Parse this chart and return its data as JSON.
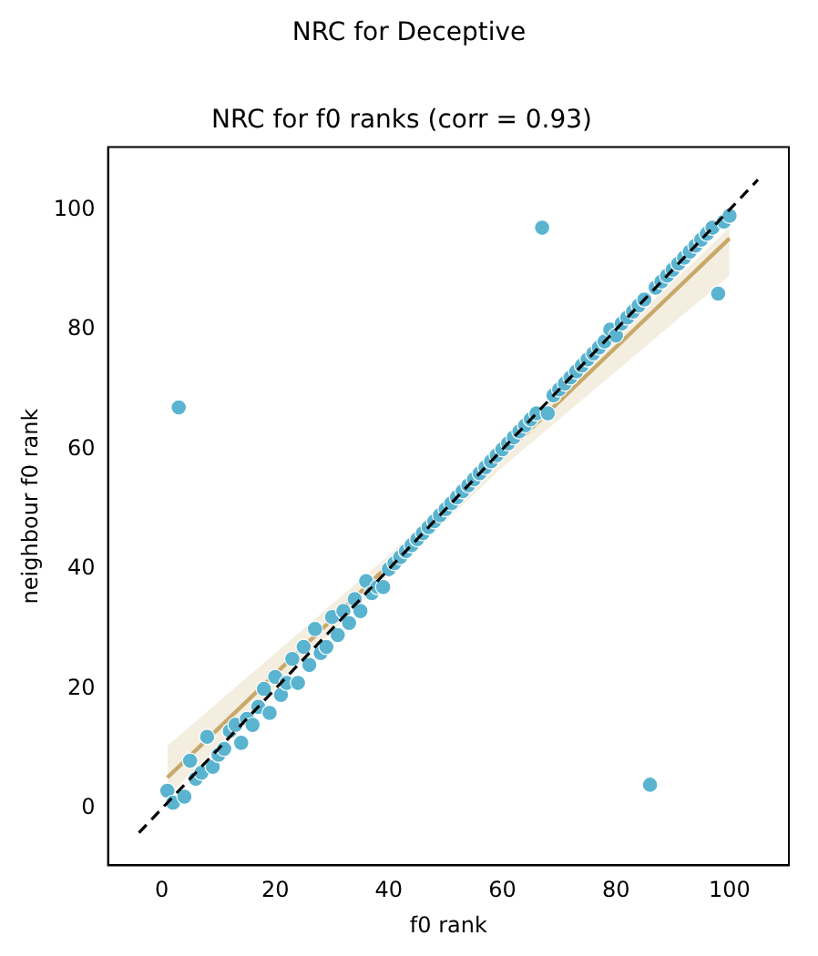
{
  "chart_data": {
    "type": "scatter",
    "title": "NRC for Deceptive",
    "subtitle": "NRC for f0 ranks (corr = 0.93)",
    "xlabel": "f0 rank",
    "ylabel": "neighbour f0 rank",
    "x": [
      1,
      2,
      3,
      4,
      5,
      6,
      7,
      8,
      9,
      10,
      11,
      12,
      13,
      14,
      15,
      16,
      17,
      18,
      19,
      20,
      21,
      22,
      23,
      24,
      25,
      26,
      27,
      28,
      29,
      30,
      31,
      32,
      33,
      34,
      35,
      36,
      37,
      38,
      39,
      40,
      41,
      42,
      43,
      44,
      45,
      46,
      47,
      48,
      49,
      50,
      51,
      52,
      53,
      54,
      55,
      56,
      57,
      58,
      59,
      60,
      61,
      62,
      63,
      64,
      65,
      66,
      67,
      68,
      69,
      70,
      71,
      72,
      73,
      74,
      75,
      76,
      77,
      78,
      79,
      80,
      81,
      82,
      83,
      84,
      85,
      86,
      87,
      88,
      89,
      90,
      91,
      92,
      93,
      94,
      95,
      96,
      97,
      98,
      99,
      100
    ],
    "series": [
      {
        "color": "#5ab4d0",
        "marker": "circle",
        "values": [
          3,
          1,
          67,
          2,
          8,
          5,
          6,
          12,
          7,
          9,
          10,
          13,
          14,
          11,
          15,
          14,
          17,
          20,
          16,
          22,
          19,
          21,
          25,
          21,
          27,
          24,
          30,
          26,
          27,
          32,
          29,
          33,
          31,
          35,
          33,
          38,
          36,
          37,
          37,
          40,
          41,
          42,
          43,
          44,
          45,
          46,
          47,
          48,
          49,
          50,
          51,
          52,
          53,
          54,
          55,
          56,
          57,
          58,
          59,
          60,
          61,
          62,
          63,
          64,
          65,
          66,
          97,
          66,
          69,
          70,
          71,
          72,
          73,
          74,
          75,
          76,
          77,
          78,
          80,
          79,
          81,
          82,
          83,
          84,
          85,
          4,
          87,
          88,
          89,
          90,
          91,
          92,
          93,
          94,
          95,
          96,
          97,
          86,
          98,
          99
        ]
      },
      {
        "type": "line",
        "color": "#c8a96a",
        "x": [
          1,
          40,
          60,
          100
        ],
        "values": [
          5.2,
          40.7,
          58.9,
          95.2
        ],
        "lower": [
          2,
          39,
          57,
          89
        ],
        "upper": [
          10.5,
          42.3,
          60.8,
          97
        ]
      },
      {
        "type": "line",
        "color": "#000000",
        "line_style": "dashed",
        "x": [
          -4,
          105
        ],
        "values": [
          -4,
          105
        ]
      }
    ],
    "xlim": [
      -9.45,
      110.45
    ],
    "ylim": [
      -9.45,
      110.45
    ],
    "xticks": [
      0,
      20,
      40,
      60,
      80,
      100
    ],
    "yticks": [
      0,
      20,
      40,
      60,
      80,
      100
    ],
    "grid": false,
    "legend": false
  }
}
